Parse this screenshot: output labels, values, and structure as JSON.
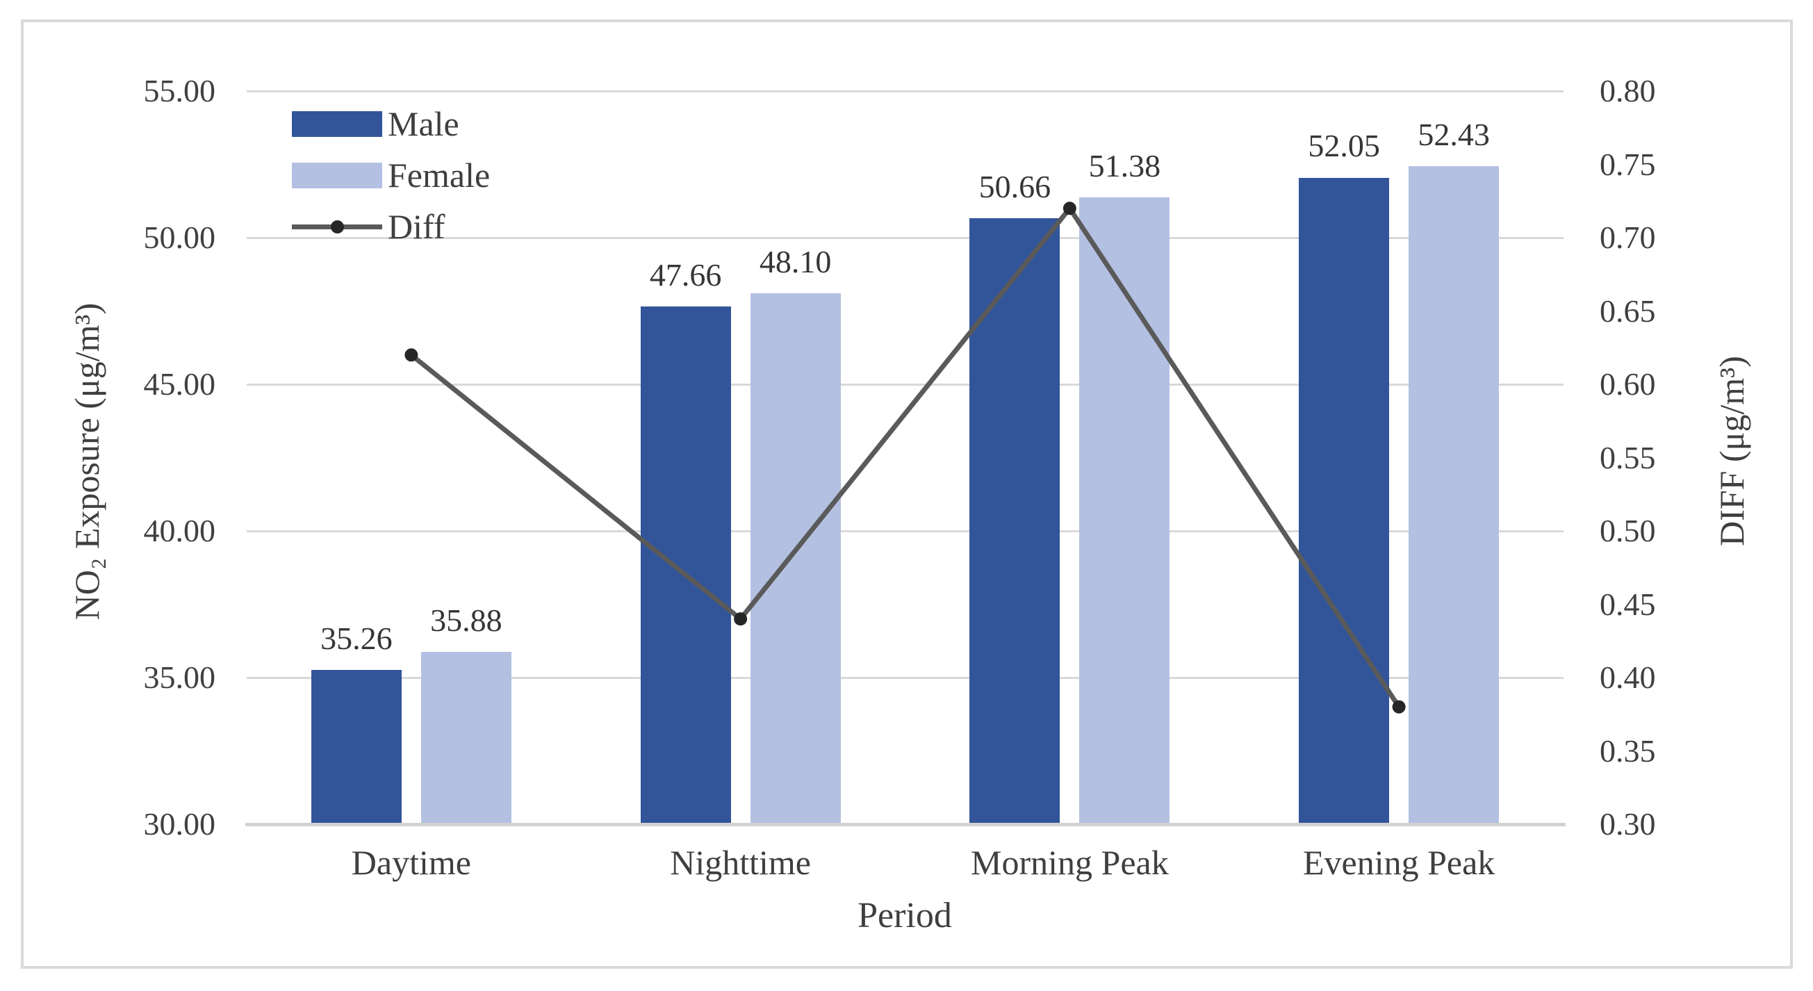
{
  "chart_data": {
    "type": "combo",
    "categories": [
      "Daytime",
      "Nighttime",
      "Morning Peak",
      "Evening Peak"
    ],
    "series": [
      {
        "name": "Male",
        "type": "bar",
        "axis": "primary",
        "color": "#32559a",
        "values": [
          35.26,
          47.66,
          50.66,
          52.05
        ],
        "value_labels": [
          "35.26",
          "47.66",
          "50.66",
          "52.05"
        ]
      },
      {
        "name": "Female",
        "type": "bar",
        "axis": "primary",
        "color": "#b4c0e2",
        "values": [
          35.88,
          48.1,
          51.38,
          52.43
        ],
        "value_labels": [
          "35.88",
          "48.10",
          "51.38",
          "52.43"
        ]
      },
      {
        "name": "Diff",
        "type": "line",
        "axis": "secondary",
        "color": "#5a5a5a",
        "marker_color": "#262626",
        "values": [
          0.62,
          0.44,
          0.72,
          0.38
        ]
      }
    ],
    "axes": {
      "left": {
        "title": "NO₂ Exposure (μg/m³)",
        "min": 30,
        "max": 55,
        "step": 5,
        "tick_labels": [
          "55.00",
          "50.00",
          "45.00",
          "40.00",
          "35.00",
          "30.00"
        ]
      },
      "right": {
        "title": "DIFF (μg/m³)",
        "min": 0.3,
        "max": 0.8,
        "step": 0.05,
        "tick_labels": [
          "0.80",
          "0.75",
          "0.70",
          "0.65",
          "0.60",
          "0.55",
          "0.50",
          "0.45",
          "0.40",
          "0.35",
          "0.30"
        ]
      },
      "x": {
        "title": "Period"
      }
    },
    "legend": {
      "position": "top-left-inside",
      "entries": [
        "Male",
        "Female",
        "Diff"
      ]
    },
    "grid": "horizontal-major-only",
    "colors": {
      "gridline": "#d9d9d9",
      "axis_line": "#d2d2d2",
      "frame_border": "#dadada",
      "text": "#3f3f3f"
    }
  }
}
